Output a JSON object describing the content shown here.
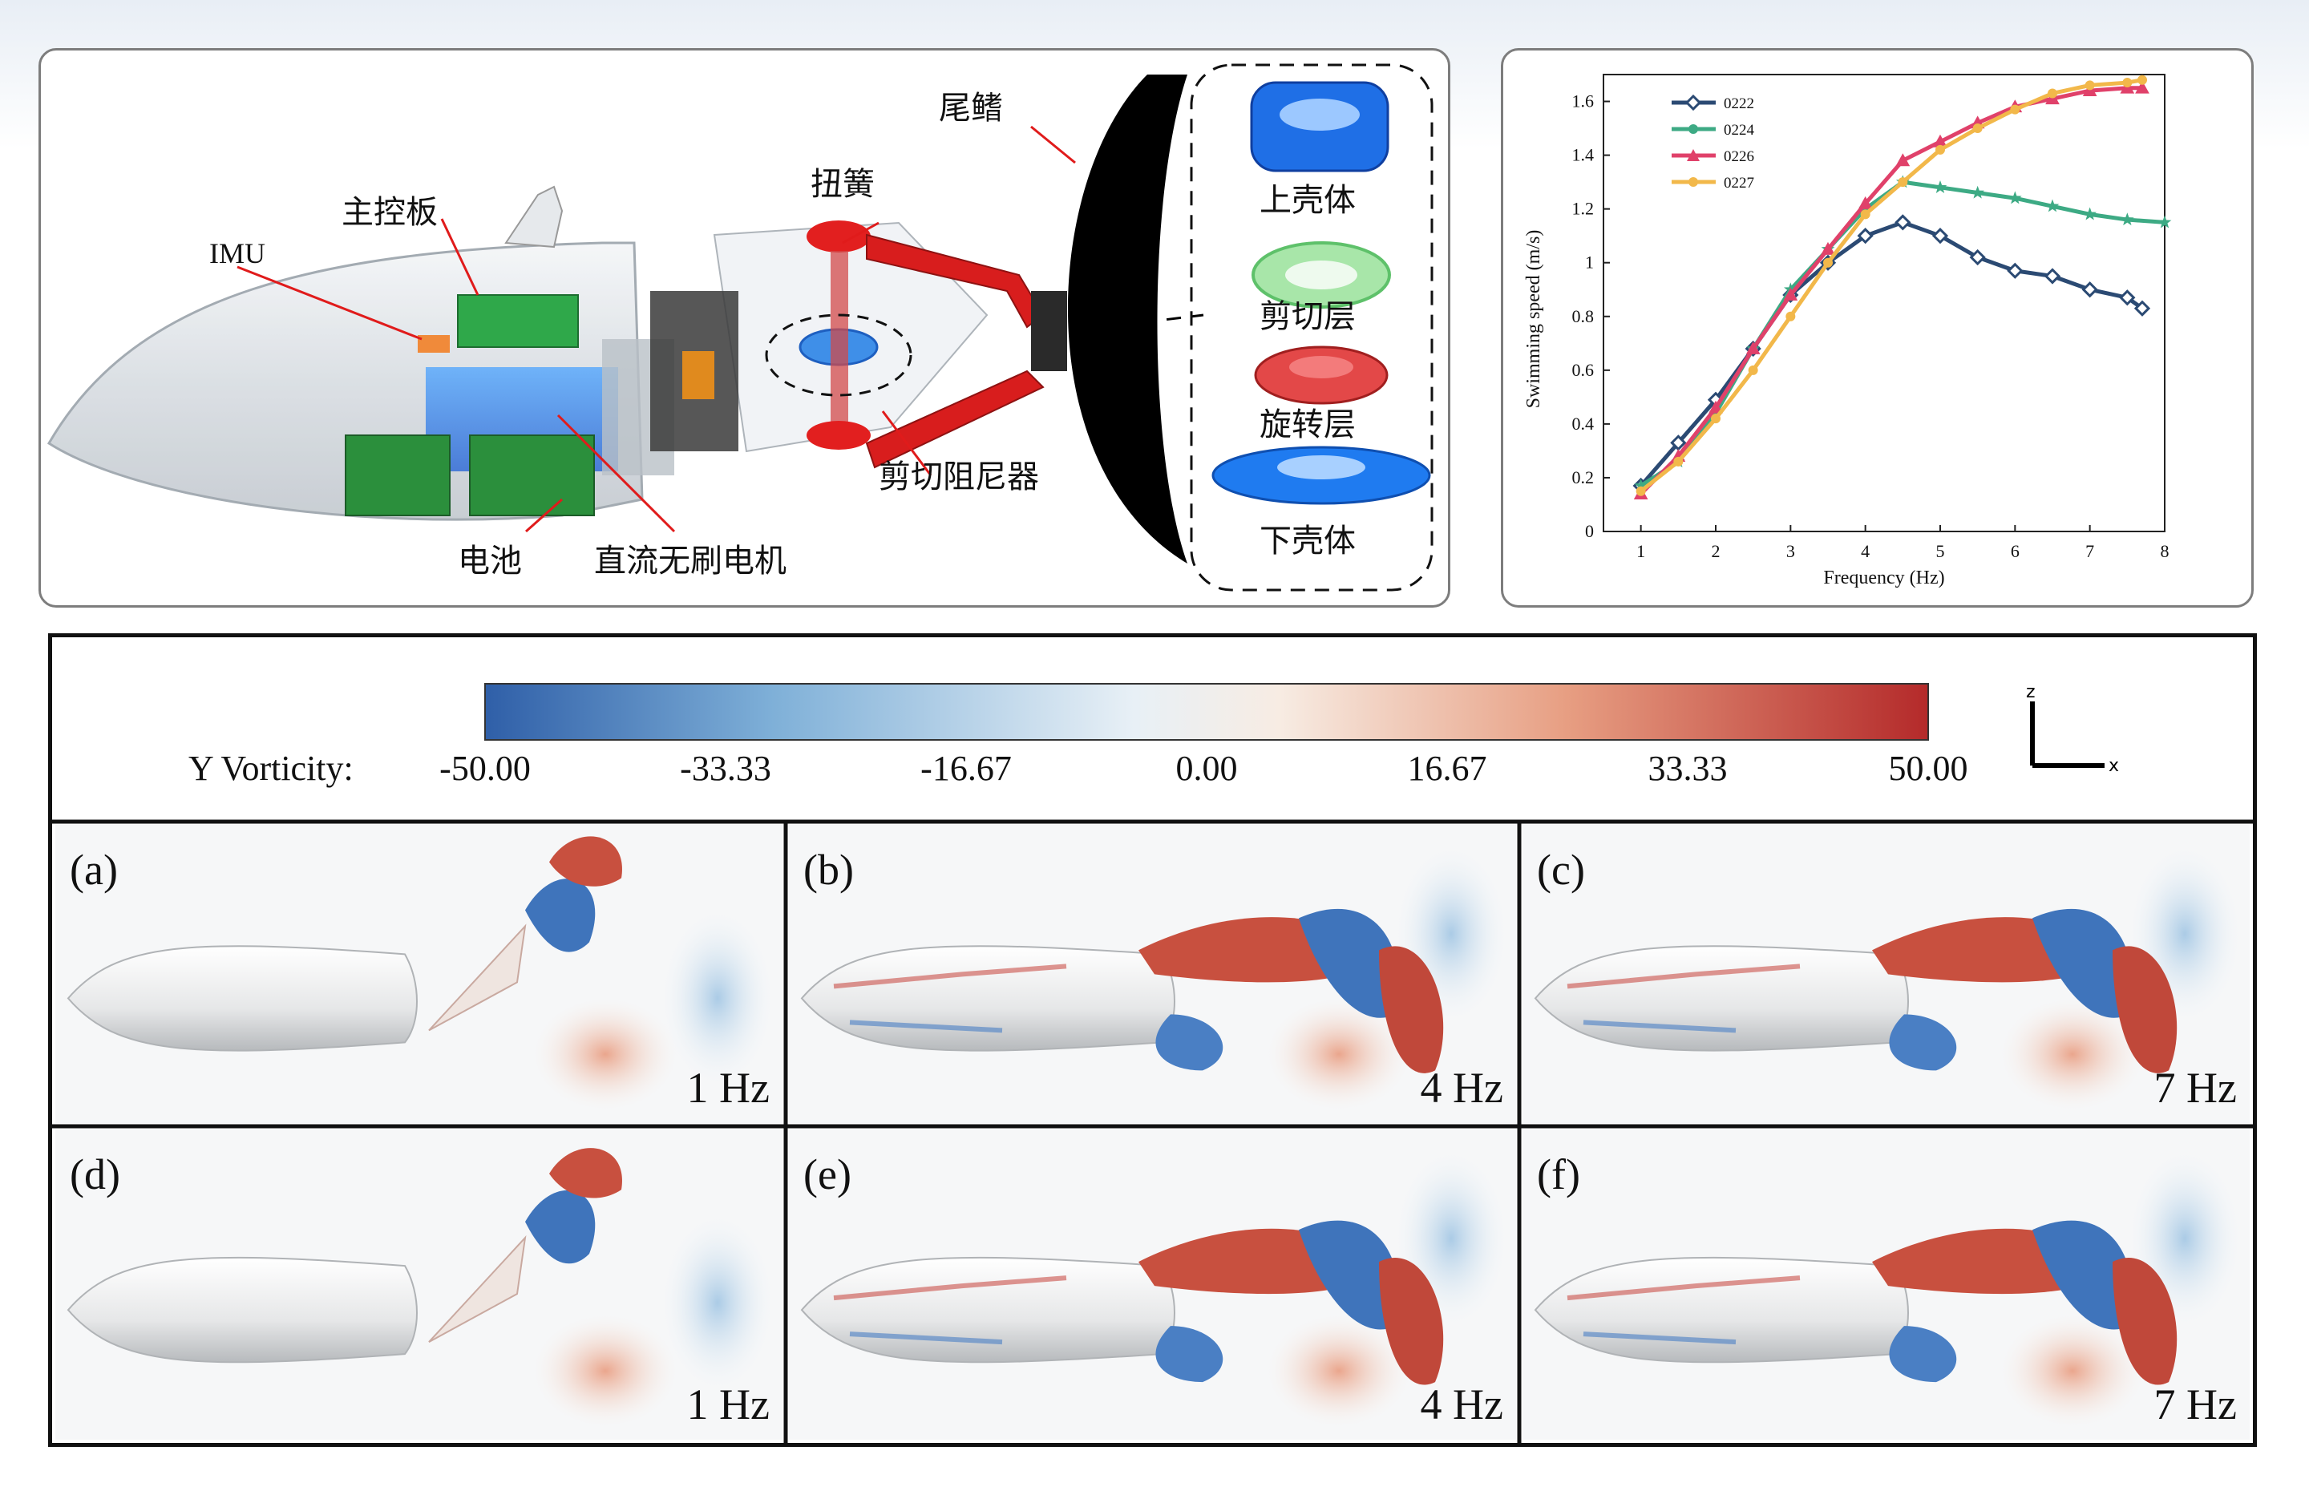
{
  "mechanism": {
    "labels": {
      "imu": "IMU",
      "main_board": "主控板",
      "battery": "电池",
      "motor": "直流无刷电机",
      "torsion_spring": "扭簧",
      "shear_damper": "剪切阻尼器",
      "tail_fin": "尾鳍",
      "upper_shell": "上壳体",
      "shear_layer": "剪切层",
      "rotation_layer": "旋转层",
      "lower_shell": "下壳体"
    },
    "colors": {
      "board": "#2fa84a",
      "battery": "#2b8f3c",
      "link": "#d41e1e",
      "damper": "#2f7fe0",
      "fin": "#000000"
    }
  },
  "chart_data": {
    "type": "line",
    "xlabel": "Frequency (Hz)",
    "ylabel": "Swimming speed (m/s)",
    "xlim": [
      0.5,
      8
    ],
    "ylim": [
      0,
      1.7
    ],
    "xticks": [
      "1",
      "2",
      "3",
      "4",
      "5",
      "6",
      "7",
      "8"
    ],
    "yticks": [
      "0",
      "0.2",
      "0.4",
      "0.6",
      "0.8",
      "1",
      "1.2",
      "1.4",
      "1.6"
    ],
    "legend_position": "top-left",
    "series": [
      {
        "name": "0222",
        "color": "#2b4a73",
        "marker": "diamond",
        "x": [
          1,
          1.5,
          2,
          2.5,
          3,
          3.5,
          4,
          4.5,
          5,
          5.5,
          6,
          6.5,
          7,
          7.5,
          7.7
        ],
        "y": [
          0.17,
          0.33,
          0.49,
          0.68,
          0.88,
          1.0,
          1.1,
          1.15,
          1.1,
          1.02,
          0.97,
          0.95,
          0.9,
          0.87,
          0.83
        ]
      },
      {
        "name": "0224",
        "color": "#3daa84",
        "marker": "star",
        "x": [
          1,
          1.5,
          2,
          2.5,
          3,
          3.5,
          4,
          4.5,
          5,
          5.5,
          6,
          6.5,
          7,
          7.5,
          8
        ],
        "y": [
          0.17,
          0.26,
          0.44,
          0.68,
          0.9,
          1.05,
          1.2,
          1.3,
          1.28,
          1.26,
          1.24,
          1.21,
          1.18,
          1.16,
          1.15
        ]
      },
      {
        "name": "0226",
        "color": "#e0416a",
        "marker": "triangle",
        "x": [
          1,
          1.5,
          2,
          2.5,
          3,
          3.5,
          4,
          4.5,
          5,
          5.5,
          6,
          6.5,
          7,
          7.5,
          7.7
        ],
        "y": [
          0.14,
          0.28,
          0.46,
          0.68,
          0.88,
          1.05,
          1.22,
          1.38,
          1.45,
          1.52,
          1.58,
          1.61,
          1.64,
          1.65,
          1.65
        ]
      },
      {
        "name": "0227",
        "color": "#f2b84a",
        "marker": "circle",
        "x": [
          1,
          1.5,
          2,
          2.5,
          3,
          3.5,
          4,
          4.5,
          5,
          5.5,
          6,
          6.5,
          7,
          7.5,
          7.7
        ],
        "y": [
          0.15,
          0.26,
          0.42,
          0.6,
          0.8,
          1.0,
          1.18,
          1.3,
          1.42,
          1.5,
          1.57,
          1.63,
          1.66,
          1.67,
          1.68
        ]
      }
    ]
  },
  "vorticity": {
    "colorbar_label": "Y Vorticity:",
    "colorbar_ticks": [
      "-50.00",
      "-33.33",
      "-16.67",
      "0.00",
      "16.67",
      "33.33",
      "50.00"
    ],
    "colorbar_colors": [
      "#2f5fa8",
      "#7fb0d8",
      "#dde9f2",
      "#f6efe8",
      "#f2b49a",
      "#d66a4f",
      "#b42a2a"
    ],
    "axis_z": "z",
    "axis_x": "x",
    "cells": [
      {
        "tag": "(a)",
        "freq": "1 Hz"
      },
      {
        "tag": "(b)",
        "freq": "4 Hz"
      },
      {
        "tag": "(c)",
        "freq": "7 Hz"
      },
      {
        "tag": "(d)",
        "freq": "1 Hz"
      },
      {
        "tag": "(e)",
        "freq": "4 Hz"
      },
      {
        "tag": "(f)",
        "freq": "7 Hz"
      }
    ]
  }
}
